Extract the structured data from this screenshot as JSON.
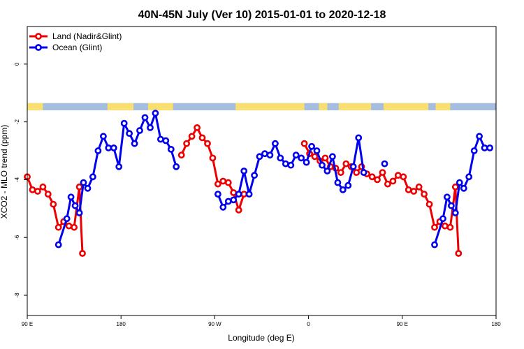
{
  "chart_data": {
    "type": "line",
    "title": "40N-45N July (Ver 10)   2015-01-01 to 2020-12-18",
    "xlabel": "Longitude (deg E)",
    "ylabel": "XCO2 - MLO trend (ppm)",
    "xlim": [
      90,
      540
    ],
    "ylim": [
      -8.7,
      1.3
    ],
    "x_ticks": [
      {
        "value": 90,
        "label": "90 E"
      },
      {
        "value": 180,
        "label": "180"
      },
      {
        "value": 270,
        "label": "90 W"
      },
      {
        "value": 360,
        "label": "0"
      },
      {
        "value": 450,
        "label": "90 E"
      },
      {
        "value": 540,
        "label": "180"
      }
    ],
    "y_ticks": [
      {
        "value": 0,
        "label": "0"
      },
      {
        "value": -2,
        "label": "-2"
      },
      {
        "value": -4,
        "label": "-4"
      },
      {
        "value": -6,
        "label": "-6"
      },
      {
        "value": -8,
        "label": "-8"
      }
    ],
    "grid": false,
    "legend_position": "top-left",
    "land_ocean_strip": {
      "y_range": [
        -1.6,
        -1.35
      ],
      "ocean_color": "#a5bddf",
      "land_color": "#f9de72",
      "land_spans": [
        [
          90,
          105
        ],
        [
          167,
          192
        ],
        [
          206,
          230
        ],
        [
          290,
          356
        ],
        [
          370,
          378
        ],
        [
          389,
          420
        ],
        [
          432,
          475
        ],
        [
          482,
          496
        ]
      ]
    },
    "series": [
      {
        "name": "Land (Nadir&Glint)",
        "color": "#ee0000",
        "segments": [
          [
            [
              90,
              -3.9
            ],
            [
              95,
              -4.35
            ],
            [
              100,
              -4.4
            ],
            [
              105,
              -4.25
            ],
            [
              110,
              -4.5
            ],
            [
              115,
              -4.85
            ],
            [
              120,
              -5.65
            ],
            [
              125,
              -5.45
            ],
            [
              130,
              -5.6
            ],
            [
              135,
              -5.65
            ],
            [
              140,
              -4.25
            ],
            [
              143,
              -6.55
            ]
          ],
          [
            [
              238,
              -3.15
            ],
            [
              243,
              -2.75
            ],
            [
              248,
              -2.5
            ],
            [
              253,
              -2.2
            ],
            [
              258,
              -2.55
            ],
            [
              263,
              -2.75
            ],
            [
              268,
              -3.25
            ],
            [
              273,
              -4.15
            ],
            [
              278,
              -4.05
            ],
            [
              283,
              -4.1
            ],
            [
              288,
              -4.45
            ],
            [
              293,
              -5.05
            ],
            [
              298,
              -4.5
            ]
          ],
          [
            [
              356,
              -2.75
            ],
            [
              361,
              -3.1
            ],
            [
              366,
              -3.2
            ],
            [
              371,
              -3.35
            ],
            [
              376,
              -3.25
            ],
            [
              381,
              -3.55
            ],
            [
              386,
              -3.6
            ],
            [
              391,
              -3.75
            ],
            [
              396,
              -3.45
            ],
            [
              401,
              -3.55
            ],
            [
              406,
              -3.75
            ],
            [
              411,
              -3.55
            ],
            [
              416,
              -3.8
            ],
            [
              421,
              -3.9
            ],
            [
              426,
              -4.0
            ],
            [
              431,
              -3.75
            ],
            [
              436,
              -4.15
            ],
            [
              441,
              -4.05
            ],
            [
              446,
              -3.85
            ],
            [
              451,
              -3.9
            ],
            [
              456,
              -4.35
            ],
            [
              461,
              -4.4
            ],
            [
              466,
              -4.25
            ],
            [
              471,
              -4.5
            ],
            [
              476,
              -4.85
            ],
            [
              481,
              -5.65
            ],
            [
              486,
              -5.45
            ],
            [
              491,
              -5.6
            ],
            [
              496,
              -5.65
            ],
            [
              501,
              -4.25
            ],
            [
              504,
              -6.55
            ]
          ]
        ]
      },
      {
        "name": "Ocean (Glint)",
        "color": "#0000ee",
        "segments": [
          [
            [
              120,
              -6.25
            ],
            [
              128,
              -5.35
            ],
            [
              132,
              -4.6
            ],
            [
              136,
              -4.9
            ],
            [
              140,
              -5.15
            ],
            [
              144,
              -4.1
            ],
            [
              148,
              -4.3
            ],
            [
              153,
              -3.9
            ],
            [
              158,
              -3.0
            ],
            [
              163,
              -2.5
            ],
            [
              168,
              -2.9
            ],
            [
              173,
              -2.9
            ],
            [
              178,
              -3.55
            ],
            [
              183,
              -2.05
            ],
            [
              188,
              -2.4
            ],
            [
              193,
              -2.75
            ],
            [
              198,
              -2.3
            ],
            [
              203,
              -1.85
            ],
            [
              208,
              -2.2
            ],
            [
              213,
              -1.7
            ],
            [
              218,
              -2.6
            ],
            [
              223,
              -2.65
            ],
            [
              228,
              -2.95
            ],
            [
              233,
              -3.55
            ]
          ],
          [
            [
              273,
              -4.5
            ],
            [
              278,
              -4.95
            ],
            [
              283,
              -4.75
            ],
            [
              288,
              -4.7
            ],
            [
              293,
              -4.5
            ],
            [
              298,
              -3.7
            ],
            [
              303,
              -4.5
            ],
            [
              308,
              -3.85
            ],
            [
              313,
              -3.2
            ],
            [
              318,
              -3.1
            ],
            [
              323,
              -3.15
            ],
            [
              328,
              -2.75
            ],
            [
              333,
              -3.25
            ],
            [
              338,
              -3.45
            ],
            [
              343,
              -3.5
            ],
            [
              348,
              -3.15
            ],
            [
              353,
              -3.25
            ],
            [
              358,
              -3.4
            ],
            [
              363,
              -2.85
            ],
            [
              368,
              -3.0
            ],
            [
              373,
              -3.5
            ],
            [
              378,
              -3.7
            ],
            [
              383,
              -3.2
            ],
            [
              388,
              -4.1
            ],
            [
              393,
              -4.35
            ],
            [
              398,
              -4.2
            ],
            [
              403,
              -3.55
            ],
            [
              408,
              -2.55
            ],
            [
              413,
              -3.75
            ]
          ],
          [
            [
              433,
              -3.45
            ]
          ],
          [
            [
              481,
              -6.25
            ],
            [
              489,
              -5.35
            ],
            [
              493,
              -4.6
            ],
            [
              497,
              -4.9
            ],
            [
              501,
              -5.15
            ],
            [
              505,
              -4.1
            ],
            [
              509,
              -4.3
            ],
            [
              514,
              -3.9
            ],
            [
              519,
              -3.0
            ],
            [
              524,
              -2.5
            ],
            [
              529,
              -2.9
            ],
            [
              534,
              -2.9
            ]
          ]
        ]
      }
    ]
  }
}
